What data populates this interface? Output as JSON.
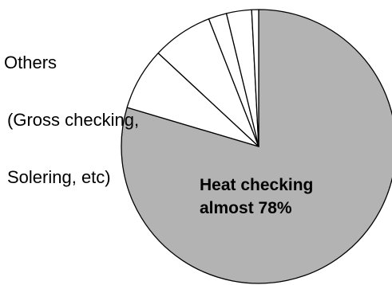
{
  "chart_data": {
    "type": "pie",
    "title": "",
    "slices": [
      {
        "label": "Heat checking",
        "value": 78,
        "color": "#b3b3b3"
      },
      {
        "label": "",
        "value": 7.2,
        "color": "#ffffff"
      },
      {
        "label": "",
        "value": 7.0,
        "color": "#ffffff"
      },
      {
        "label": "",
        "value": 2.1,
        "color": "#ffffff"
      },
      {
        "label": "",
        "value": 2.9,
        "color": "#ffffff"
      },
      {
        "label": "",
        "value": 0.8,
        "color": "#ffffff"
      }
    ],
    "annotations": {
      "others_line1": "Others",
      "others_line2": "(Gross checking,",
      "others_line3": "Solering, etc)",
      "main_line1": "Heat checking",
      "main_line2": "almost 78%"
    },
    "start_angle": "12 o'clock",
    "direction": "clockwise",
    "legend": "none"
  }
}
